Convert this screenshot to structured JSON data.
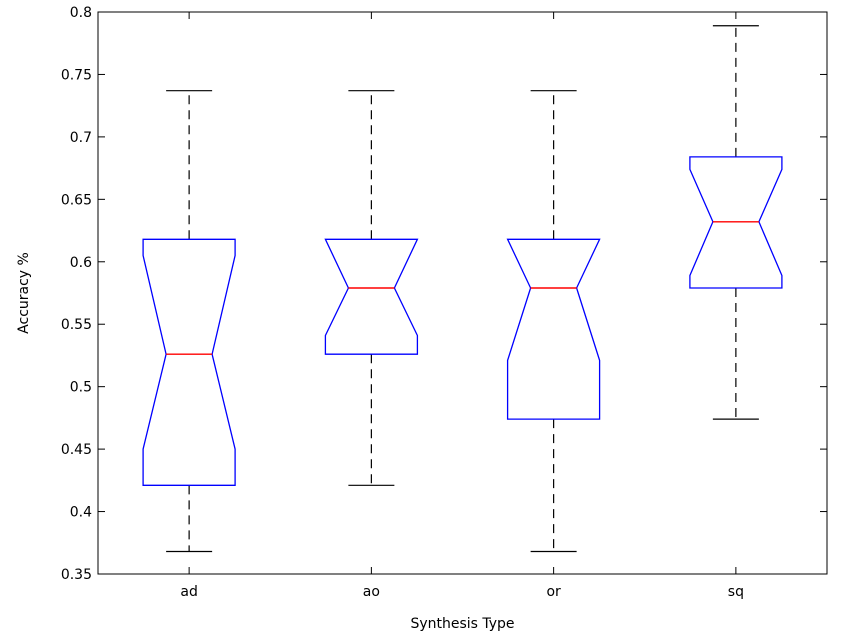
{
  "chart_data": {
    "type": "boxplot",
    "notched": true,
    "xlabel": "Synthesis Type",
    "ylabel": "Accuracy %",
    "ylim": [
      0.35,
      0.8
    ],
    "yticks": [
      "0.35",
      "0.4",
      "0.45",
      "0.5",
      "0.55",
      "0.6",
      "0.65",
      "0.7",
      "0.75",
      "0.8"
    ],
    "grid": false,
    "categories": [
      "ad",
      "ao",
      "or",
      "sq"
    ],
    "boxes": [
      {
        "label": "ad",
        "whisker_low": 0.368,
        "q1": 0.421,
        "median": 0.526,
        "q3": 0.618,
        "whisker_high": 0.737,
        "notch_low": 0.45,
        "notch_high": 0.605
      },
      {
        "label": "ao",
        "whisker_low": 0.421,
        "q1": 0.526,
        "median": 0.579,
        "q3": 0.618,
        "whisker_high": 0.737,
        "notch_low": 0.541,
        "notch_high": 0.618
      },
      {
        "label": "or",
        "whisker_low": 0.368,
        "q1": 0.474,
        "median": 0.579,
        "q3": 0.618,
        "whisker_high": 0.737,
        "notch_low": 0.521,
        "notch_high": 0.618
      },
      {
        "label": "sq",
        "whisker_low": 0.474,
        "q1": 0.579,
        "median": 0.632,
        "q3": 0.684,
        "whisker_high": 0.789,
        "notch_low": 0.589,
        "notch_high": 0.674
      }
    ],
    "colors": {
      "box": "#0000ff",
      "median": "#ff0000",
      "whisker": "#000000"
    }
  }
}
